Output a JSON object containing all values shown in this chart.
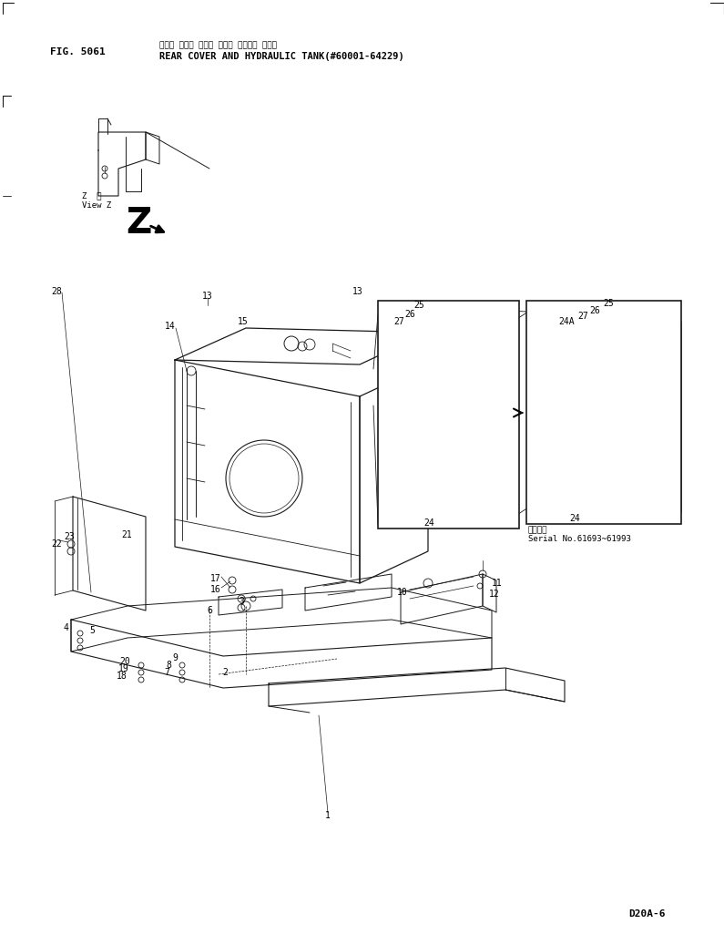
{
  "fig_label": "FIG. 5061",
  "title_jp": "リヤー カバー オコビ ハイド ロリック タンク",
  "title_en": "REAR COVER AND HYDRAULIC TANK(#60001-64229)",
  "model": "D20A-6",
  "serial_note": "Serial No.61693~61993",
  "serial_label": "適用号標",
  "bg_color": "#ffffff",
  "line_color": "#1a1a1a"
}
